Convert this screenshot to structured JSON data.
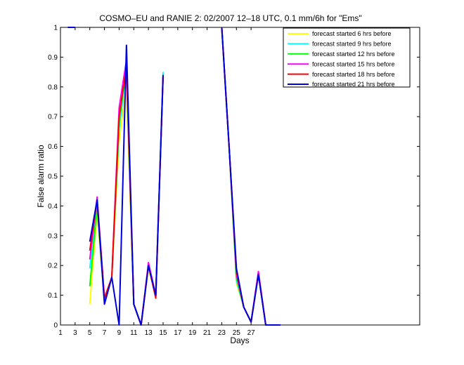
{
  "chart_data": {
    "type": "line",
    "title": "COSMO–EU and RANIE 2: 02/2007 12–18 UTC, 0.1 mm/6h for \"Ems\"",
    "xlabel": "Days",
    "ylabel": "False alarm ratio",
    "xlim": [
      1,
      50
    ],
    "ylim": [
      0,
      1
    ],
    "xticks": [
      1,
      3,
      5,
      7,
      9,
      11,
      13,
      15,
      17,
      19,
      21,
      23,
      25,
      27
    ],
    "xtick_labels": [
      "1",
      "3",
      "5",
      "7",
      "9",
      "11",
      "13",
      "15",
      "17",
      "19",
      "21",
      "23",
      "25",
      "27"
    ],
    "yticks": [
      0,
      0.1,
      0.2,
      0.3,
      0.4,
      0.5,
      0.6,
      0.7,
      0.8,
      0.9,
      1
    ],
    "ytick_labels": [
      "0",
      "0.1",
      "0.2",
      "0.3",
      "0.4",
      "0.5",
      "0.6",
      "0.7",
      "0.8",
      "0.9",
      "1"
    ],
    "grid": false,
    "legend_position": "top-right",
    "series": [
      {
        "name": "forecast started 6 hrs before",
        "color": "#ffff00",
        "segments": [
          [
            [
              2,
              1
            ],
            [
              3,
              1
            ]
          ],
          [
            [
              5,
              0.07
            ],
            [
              6,
              0.38
            ],
            [
              7,
              0.08
            ],
            [
              8,
              0.16
            ],
            [
              9,
              0.62
            ],
            [
              10,
              0.8
            ],
            [
              11,
              0.07
            ],
            [
              12,
              0
            ],
            [
              13,
              0.19
            ],
            [
              14,
              0.1
            ],
            [
              15,
              0.83
            ]
          ],
          [
            [
              23,
              1
            ],
            [
              24,
              0.6
            ],
            [
              25,
              0.14
            ],
            [
              26,
              0.06
            ],
            [
              27,
              0.01
            ],
            [
              28,
              0.17
            ],
            [
              29,
              0
            ],
            [
              30,
              0
            ],
            [
              31,
              0
            ]
          ]
        ]
      },
      {
        "name": "forecast started 9 hrs before",
        "color": "#00ffff",
        "segments": [
          [
            [
              2,
              1
            ],
            [
              3,
              1
            ]
          ],
          [
            [
              5,
              0.19
            ],
            [
              6,
              0.41
            ],
            [
              7,
              0.08
            ],
            [
              8,
              0.16
            ],
            [
              9,
              0.66
            ],
            [
              10,
              0.85
            ],
            [
              11,
              0.07
            ],
            [
              12,
              0
            ],
            [
              13,
              0.2
            ],
            [
              14,
              0.1
            ],
            [
              15,
              0.85
            ]
          ],
          [
            [
              23,
              1
            ],
            [
              24,
              0.6
            ],
            [
              25,
              0.15
            ],
            [
              26,
              0.06
            ],
            [
              27,
              0.01
            ],
            [
              28,
              0.17
            ],
            [
              29,
              0
            ],
            [
              30,
              0
            ],
            [
              31,
              0
            ]
          ]
        ]
      },
      {
        "name": "forecast started 12 hrs before",
        "color": "#00ff00",
        "segments": [
          [
            [
              2,
              1
            ],
            [
              3,
              1
            ]
          ],
          [
            [
              5,
              0.13
            ],
            [
              6,
              0.4
            ],
            [
              7,
              0.08
            ],
            [
              8,
              0.16
            ],
            [
              9,
              0.68
            ],
            [
              10,
              0.87
            ],
            [
              11,
              0.07
            ],
            [
              12,
              0
            ],
            [
              13,
              0.2
            ],
            [
              14,
              0.1
            ],
            [
              15,
              0.84
            ]
          ],
          [
            [
              23,
              1
            ],
            [
              24,
              0.6
            ],
            [
              25,
              0.16
            ],
            [
              26,
              0.06
            ],
            [
              27,
              0.01
            ],
            [
              28,
              0.17
            ],
            [
              29,
              0
            ],
            [
              30,
              0
            ],
            [
              31,
              0
            ]
          ]
        ]
      },
      {
        "name": "forecast started 15 hrs before",
        "color": "#ff00ff",
        "segments": [
          [
            [
              2,
              1
            ],
            [
              3,
              1
            ]
          ],
          [
            [
              5,
              0.22
            ],
            [
              6,
              0.43
            ],
            [
              7,
              0.09
            ],
            [
              8,
              0.16
            ],
            [
              9,
              0.73
            ],
            [
              10,
              0.89
            ],
            [
              11,
              0.07
            ],
            [
              12,
              0
            ],
            [
              13,
              0.21
            ],
            [
              14,
              0.1
            ],
            [
              15,
              0.84
            ]
          ],
          [
            [
              23,
              1
            ],
            [
              24,
              0.6
            ],
            [
              25,
              0.17
            ],
            [
              26,
              0.06
            ],
            [
              27,
              0.01
            ],
            [
              28,
              0.18
            ],
            [
              29,
              0
            ],
            [
              30,
              0
            ],
            [
              31,
              0
            ]
          ]
        ]
      },
      {
        "name": "forecast started 18 hrs before",
        "color": "#ff0000",
        "segments": [
          [
            [
              2,
              1
            ],
            [
              3,
              1
            ]
          ],
          [
            [
              5,
              0.25
            ],
            [
              6,
              0.42
            ],
            [
              7,
              0.09
            ],
            [
              8,
              0.16
            ],
            [
              9,
              0.7
            ],
            [
              10,
              0.87
            ],
            [
              11,
              0.07
            ],
            [
              12,
              0
            ],
            [
              13,
              0.2
            ],
            [
              14,
              0.09
            ],
            [
              15,
              0.84
            ]
          ],
          [
            [
              23,
              1
            ],
            [
              24,
              0.6
            ],
            [
              25,
              0.18
            ],
            [
              26,
              0.06
            ],
            [
              27,
              0.01
            ],
            [
              28,
              0.17
            ],
            [
              29,
              0
            ],
            [
              30,
              0
            ],
            [
              31,
              0
            ]
          ]
        ]
      },
      {
        "name": "forecast started 21 hrs before",
        "color": "#0000dd",
        "segments": [
          [
            [
              2,
              1
            ],
            [
              3,
              1
            ]
          ],
          [
            [
              5,
              0.28
            ],
            [
              6,
              0.42
            ],
            [
              7,
              0.07
            ],
            [
              8,
              0.16
            ],
            [
              9,
              0
            ],
            [
              10,
              0.94
            ],
            [
              11,
              0.07
            ],
            [
              12,
              0
            ],
            [
              13,
              0.2
            ],
            [
              14,
              0.1
            ],
            [
              15,
              0.84
            ]
          ],
          [
            [
              23,
              1
            ],
            [
              24,
              0.6
            ],
            [
              25,
              0.19
            ],
            [
              26,
              0.06
            ],
            [
              27,
              0.01
            ],
            [
              28,
              0.17
            ],
            [
              29,
              0
            ],
            [
              30,
              0
            ],
            [
              31,
              0
            ]
          ]
        ]
      }
    ]
  }
}
